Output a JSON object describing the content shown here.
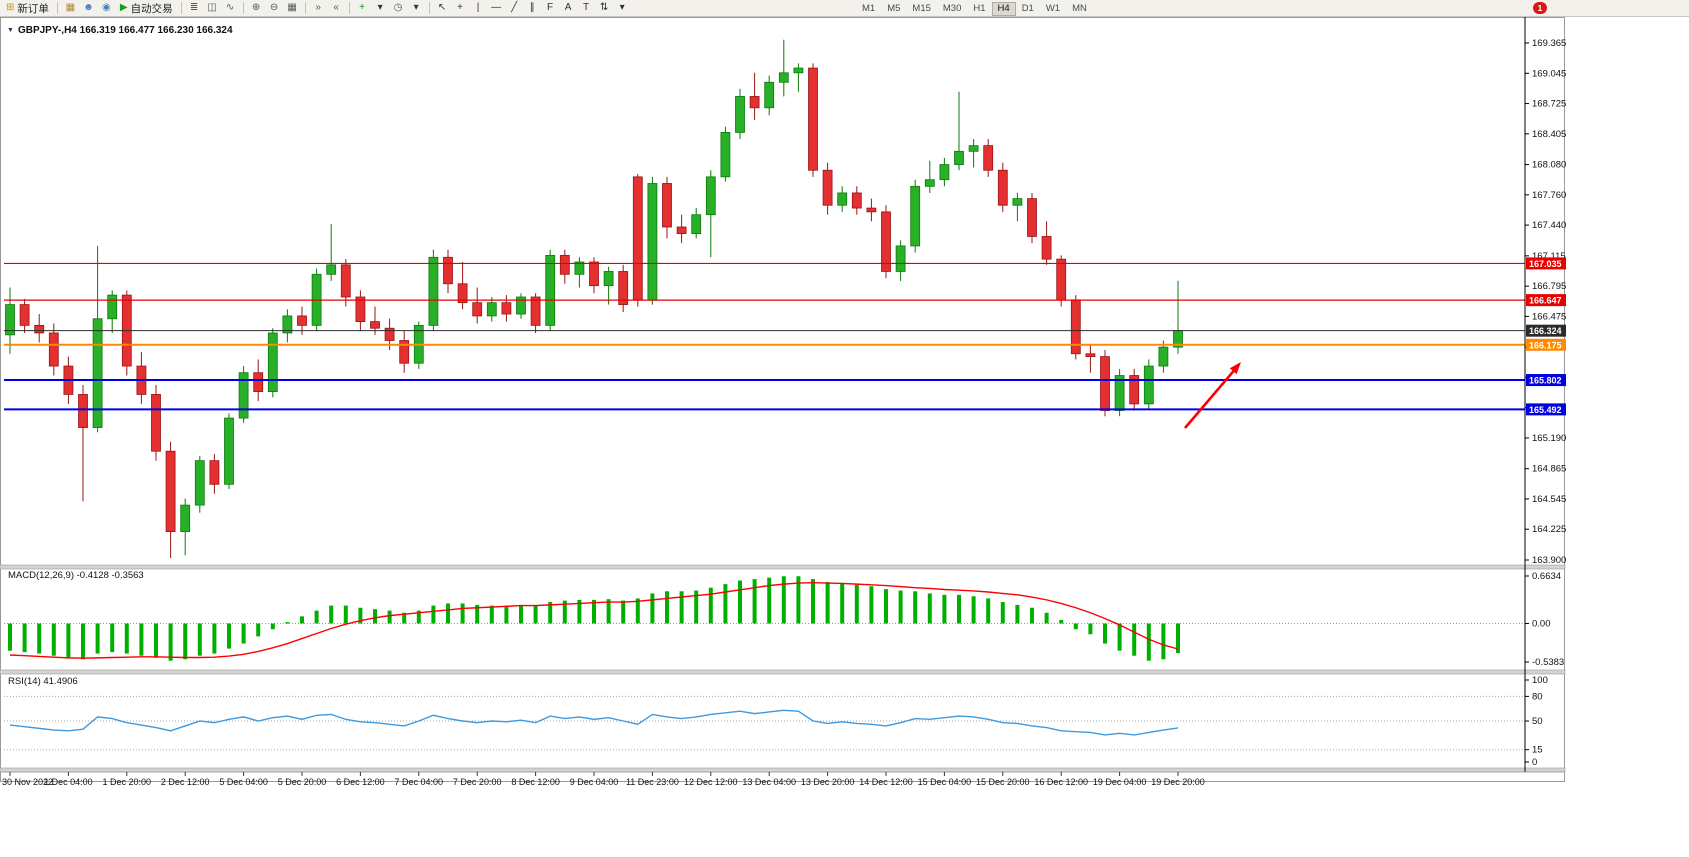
{
  "toolbar": {
    "new_order_label": "新订单",
    "auto_trading_label": "自动交易",
    "badge_count": "1",
    "timeframes": [
      "M1",
      "M5",
      "M15",
      "M30",
      "H1",
      "H4",
      "D1",
      "W1",
      "MN"
    ],
    "active_timeframe": "H4",
    "left_items": [
      {
        "type": "button",
        "name": "new-order-button",
        "label": "新订单",
        "icon_name": "new-order-icon",
        "icon_glyph": "⊞",
        "icon_color": "#c79810"
      },
      {
        "type": "sep"
      },
      {
        "type": "icon",
        "name": "charts-grid-icon",
        "glyph": "▦",
        "color": "#b08830"
      },
      {
        "type": "icon",
        "name": "profiles-icon",
        "glyph": "☻",
        "color": "#4a7ebb"
      },
      {
        "type": "icon",
        "name": "sound-alert-icon",
        "glyph": "◉",
        "color": "#4a7ebb"
      },
      {
        "type": "button",
        "name": "auto-trading-button",
        "label": "自动交易",
        "icon_name": "auto-trading-icon",
        "icon_glyph": "▶",
        "icon_color": "#12a112"
      },
      {
        "type": "sep"
      },
      {
        "type": "icon",
        "name": "bar-chart-icon",
        "glyph": "≣",
        "color": "#555555"
      },
      {
        "type": "icon",
        "name": "candlestick-chart-icon",
        "glyph": "◫",
        "color": "#555555"
      },
      {
        "type": "icon",
        "name": "line-chart-icon",
        "glyph": "∿",
        "color": "#555555"
      },
      {
        "type": "sep"
      },
      {
        "type": "icon",
        "name": "zoom-in-icon",
        "glyph": "⊕",
        "color": "#555555"
      },
      {
        "type": "icon",
        "name": "zoom-out-icon",
        "glyph": "⊖",
        "color": "#555555"
      },
      {
        "type": "icon",
        "name": "tile-windows-icon",
        "glyph": "▦",
        "color": "#555555"
      },
      {
        "type": "sep"
      },
      {
        "type": "icon",
        "name": "auto-scroll-icon",
        "glyph": "»",
        "color": "#2a7a2a"
      },
      {
        "type": "icon",
        "name": "chart-shift-icon",
        "glyph": "«",
        "color": "#2a7a2a"
      },
      {
        "type": "sep"
      },
      {
        "type": "icon",
        "name": "indicators-add-icon",
        "glyph": "+",
        "color": "#0a930a"
      },
      {
        "type": "icon",
        "name": "indicators-dropdown-caret",
        "glyph": "▾",
        "color": "#333333"
      },
      {
        "type": "icon",
        "name": "periods-clock-icon",
        "glyph": "◷",
        "color": "#555555"
      },
      {
        "type": "icon",
        "name": "periods-dropdown-caret",
        "glyph": "▾",
        "color": "#333333"
      },
      {
        "type": "sep"
      },
      {
        "type": "icon",
        "name": "cursor-icon",
        "glyph": "↖",
        "color": "#333333"
      },
      {
        "type": "icon",
        "name": "crosshair-icon",
        "glyph": "+",
        "color": "#333333"
      },
      {
        "type": "icon",
        "name": "vertical-line-icon",
        "glyph": "|",
        "color": "#333333"
      },
      {
        "type": "icon",
        "name": "horizontal-line-icon",
        "glyph": "—",
        "color": "#333333"
      },
      {
        "type": "icon",
        "name": "trendline-icon",
        "glyph": "╱",
        "color": "#333333"
      },
      {
        "type": "icon",
        "name": "channel-icon",
        "glyph": "∥",
        "color": "#333333"
      },
      {
        "type": "icon",
        "name": "fibonacci-icon",
        "glyph": "F",
        "color": "#333333"
      },
      {
        "type": "icon",
        "name": "text-icon",
        "glyph": "A",
        "color": "#333333"
      },
      {
        "type": "icon",
        "name": "text-label-icon",
        "glyph": "T",
        "color": "#333333"
      },
      {
        "type": "icon",
        "name": "arrows-icon",
        "glyph": "⇅",
        "color": "#333333"
      },
      {
        "type": "icon",
        "name": "arrows-dropdown-caret",
        "glyph": "▾",
        "color": "#333333"
      }
    ]
  },
  "chart": {
    "title": "GBPJPY-,H4  166.319 166.477 166.230 166.324",
    "symbol": "GBPJPY-",
    "timeframe": "H4",
    "price_axis": [
      "169.365",
      "169.045",
      "168.725",
      "168.405",
      "168.080",
      "167.760",
      "167.440",
      "167.115",
      "166.795",
      "166.475",
      "166.150",
      "165.830",
      "165.510",
      "165.190",
      "164.865",
      "164.545",
      "164.225",
      "163.900"
    ],
    "levels": [
      {
        "label": "167.035",
        "price": 167.035,
        "color": "#e80000",
        "width": 1.2
      },
      {
        "label": "166.647",
        "price": 166.647,
        "color": "#e80000",
        "width": 1.2
      },
      {
        "label": "166.324",
        "price": 166.324,
        "color": "#2b2b2b",
        "width": 1
      },
      {
        "label": "166.175",
        "price": 166.175,
        "color": "#ff8a00",
        "width": 2
      },
      {
        "label": "165.802",
        "price": 165.802,
        "color": "#0000e0",
        "width": 2
      },
      {
        "label": "165.492",
        "price": 165.492,
        "color": "#0000e0",
        "width": 2
      }
    ],
    "time_axis": [
      "30 Nov 2022",
      "1 Dec 04:00",
      "1 Dec 20:00",
      "2 Dec 12:00",
      "5 Dec 04:00",
      "5 Dec 20:00",
      "6 Dec 12:00",
      "7 Dec 04:00",
      "7 Dec 20:00",
      "8 Dec 12:00",
      "9 Dec 04:00",
      "11 Dec 23:00",
      "12 Dec 12:00",
      "13 Dec 04:00",
      "13 Dec 20:00",
      "14 Dec 12:00",
      "15 Dec 04:00",
      "15 Dec 20:00",
      "16 Dec 12:00",
      "19 Dec 04:00",
      "19 Dec 20:00"
    ]
  },
  "macd": {
    "label": "MACD(12,26,9) -0.4128 -0.3563",
    "scale": [
      "0.6634",
      "0.00",
      "-0.5383"
    ]
  },
  "rsi": {
    "label": "RSI(14) 41.4906",
    "scale": [
      "100",
      "80",
      "50",
      "15",
      "0"
    ]
  },
  "annotations": {
    "arrow": {
      "color": "#ff0000",
      "direction": "up-right"
    }
  },
  "chart_data": [
    {
      "type": "candlestick",
      "title": "GBPJPY- H4",
      "ohlc_display": [
        166.319,
        166.477,
        166.23,
        166.324
      ],
      "ylim": [
        163.75,
        169.6
      ],
      "up_color": "#28b028",
      "down_color": "#e43030",
      "x_labels": [
        "30 Nov 2022",
        "1 Dec 04:00",
        "1 Dec 20:00",
        "2 Dec 12:00",
        "5 Dec 04:00",
        "5 Dec 20:00",
        "6 Dec 12:00",
        "7 Dec 04:00",
        "7 Dec 20:00",
        "8 Dec 12:00",
        "9 Dec 04:00",
        "11 Dec 23:00",
        "12 Dec 12:00",
        "13 Dec 04:00",
        "13 Dec 20:00",
        "14 Dec 12:00",
        "15 Dec 04:00",
        "15 Dec 20:00",
        "16 Dec 12:00",
        "19 Dec 04:00",
        "19 Dec 20:00"
      ],
      "x_label_every": 4,
      "ohlc": [
        [
          166.28,
          166.78,
          166.08,
          166.6
        ],
        [
          166.6,
          166.66,
          166.3,
          166.38
        ],
        [
          166.38,
          166.5,
          166.2,
          166.3
        ],
        [
          166.3,
          166.4,
          165.85,
          165.95
        ],
        [
          165.95,
          166.05,
          165.55,
          165.65
        ],
        [
          165.65,
          165.75,
          164.52,
          165.3
        ],
        [
          165.3,
          167.22,
          165.25,
          166.45
        ],
        [
          166.45,
          166.75,
          166.3,
          166.7
        ],
        [
          166.7,
          166.75,
          165.85,
          165.95
        ],
        [
          165.95,
          166.1,
          165.55,
          165.65
        ],
        [
          165.65,
          165.75,
          164.95,
          165.05
        ],
        [
          165.05,
          165.15,
          163.92,
          164.2
        ],
        [
          164.2,
          164.55,
          163.95,
          164.48
        ],
        [
          164.48,
          165.0,
          164.4,
          164.95
        ],
        [
          164.95,
          165.02,
          164.6,
          164.7
        ],
        [
          164.7,
          165.45,
          164.65,
          165.4
        ],
        [
          165.4,
          165.95,
          165.35,
          165.88
        ],
        [
          165.88,
          166.02,
          165.58,
          165.68
        ],
        [
          165.68,
          166.35,
          165.62,
          166.3
        ],
        [
          166.3,
          166.55,
          166.2,
          166.48
        ],
        [
          166.48,
          166.58,
          166.28,
          166.38
        ],
        [
          166.38,
          166.98,
          166.32,
          166.92
        ],
        [
          166.92,
          167.45,
          166.85,
          167.02
        ],
        [
          167.02,
          167.08,
          166.58,
          166.68
        ],
        [
          166.68,
          166.75,
          166.32,
          166.42
        ],
        [
          166.42,
          166.58,
          166.28,
          166.35
        ],
        [
          166.35,
          166.45,
          166.12,
          166.22
        ],
        [
          166.22,
          166.32,
          165.88,
          165.98
        ],
        [
          165.98,
          166.42,
          165.92,
          166.38
        ],
        [
          166.38,
          167.18,
          166.32,
          167.1
        ],
        [
          167.1,
          167.18,
          166.72,
          166.82
        ],
        [
          166.82,
          167.05,
          166.55,
          166.62
        ],
        [
          166.62,
          166.78,
          166.4,
          166.48
        ],
        [
          166.48,
          166.68,
          166.42,
          166.62
        ],
        [
          166.62,
          166.7,
          166.42,
          166.5
        ],
        [
          166.5,
          166.72,
          166.45,
          166.68
        ],
        [
          166.68,
          166.72,
          166.3,
          166.38
        ],
        [
          166.38,
          167.18,
          166.32,
          167.12
        ],
        [
          167.12,
          167.18,
          166.82,
          166.92
        ],
        [
          166.92,
          167.1,
          166.78,
          167.05
        ],
        [
          167.05,
          167.1,
          166.72,
          166.8
        ],
        [
          166.8,
          167.0,
          166.6,
          166.95
        ],
        [
          166.95,
          167.02,
          166.52,
          166.6
        ],
        [
          167.95,
          167.98,
          166.58,
          166.65
        ],
        [
          166.65,
          167.95,
          166.6,
          167.88
        ],
        [
          167.88,
          167.95,
          167.3,
          167.42
        ],
        [
          167.42,
          167.55,
          167.25,
          167.35
        ],
        [
          167.35,
          167.62,
          167.3,
          167.55
        ],
        [
          167.55,
          168.02,
          167.1,
          167.95
        ],
        [
          167.95,
          168.48,
          167.9,
          168.42
        ],
        [
          168.42,
          168.88,
          168.35,
          168.8
        ],
        [
          168.8,
          169.05,
          168.55,
          168.68
        ],
        [
          168.68,
          169.02,
          168.6,
          168.95
        ],
        [
          168.95,
          169.4,
          168.8,
          169.05
        ],
        [
          169.05,
          169.15,
          168.85,
          169.1
        ],
        [
          169.1,
          169.15,
          167.95,
          168.02
        ],
        [
          168.02,
          168.1,
          167.55,
          167.65
        ],
        [
          167.65,
          167.85,
          167.58,
          167.78
        ],
        [
          167.78,
          167.85,
          167.55,
          167.62
        ],
        [
          167.62,
          167.72,
          167.48,
          167.58
        ],
        [
          167.58,
          167.65,
          166.88,
          166.95
        ],
        [
          166.95,
          167.28,
          166.85,
          167.22
        ],
        [
          167.22,
          167.92,
          167.15,
          167.85
        ],
        [
          167.85,
          168.12,
          167.78,
          167.92
        ],
        [
          167.92,
          168.15,
          167.85,
          168.08
        ],
        [
          168.08,
          168.85,
          168.02,
          168.22
        ],
        [
          168.22,
          168.35,
          168.05,
          168.28
        ],
        [
          168.28,
          168.35,
          167.95,
          168.02
        ],
        [
          168.02,
          168.1,
          167.58,
          167.65
        ],
        [
          167.65,
          167.78,
          167.48,
          167.72
        ],
        [
          167.72,
          167.78,
          167.25,
          167.32
        ],
        [
          167.32,
          167.48,
          167.02,
          167.08
        ],
        [
          167.08,
          167.12,
          166.58,
          166.65
        ],
        [
          166.65,
          166.7,
          166.02,
          166.08
        ],
        [
          166.08,
          166.18,
          165.88,
          166.05
        ],
        [
          166.05,
          166.12,
          165.42,
          165.48
        ],
        [
          165.48,
          165.92,
          165.42,
          165.85
        ],
        [
          165.85,
          165.92,
          165.48,
          165.55
        ],
        [
          165.55,
          166.02,
          165.5,
          165.95
        ],
        [
          165.95,
          166.22,
          165.88,
          166.15
        ],
        [
          166.15,
          166.85,
          166.08,
          166.324
        ]
      ]
    },
    {
      "type": "bar",
      "title": "MACD(12,26,9)",
      "ylim": [
        -0.5383,
        0.6634
      ],
      "histogram_color": "#00b000",
      "signal_color": "#ff0000",
      "histogram": [
        -0.38,
        -0.4,
        -0.42,
        -0.45,
        -0.48,
        -0.5,
        -0.42,
        -0.4,
        -0.42,
        -0.45,
        -0.48,
        -0.52,
        -0.5,
        -0.45,
        -0.42,
        -0.35,
        -0.28,
        -0.18,
        -0.08,
        0.02,
        0.1,
        0.18,
        0.25,
        0.25,
        0.22,
        0.2,
        0.18,
        0.15,
        0.18,
        0.25,
        0.28,
        0.28,
        0.26,
        0.25,
        0.25,
        0.26,
        0.25,
        0.3,
        0.32,
        0.33,
        0.33,
        0.34,
        0.32,
        0.35,
        0.42,
        0.45,
        0.45,
        0.46,
        0.5,
        0.55,
        0.6,
        0.62,
        0.64,
        0.66,
        0.66,
        0.62,
        0.58,
        0.56,
        0.54,
        0.52,
        0.48,
        0.46,
        0.45,
        0.42,
        0.4,
        0.4,
        0.38,
        0.35,
        0.3,
        0.26,
        0.22,
        0.15,
        0.05,
        -0.08,
        -0.15,
        -0.28,
        -0.38,
        -0.45,
        -0.52,
        -0.5,
        -0.4128
      ],
      "signal": [
        -0.44,
        -0.45,
        -0.46,
        -0.47,
        -0.48,
        -0.485,
        -0.48,
        -0.475,
        -0.47,
        -0.465,
        -0.465,
        -0.47,
        -0.475,
        -0.475,
        -0.47,
        -0.455,
        -0.43,
        -0.39,
        -0.34,
        -0.28,
        -0.21,
        -0.14,
        -0.07,
        -0.01,
        0.04,
        0.08,
        0.11,
        0.13,
        0.15,
        0.17,
        0.19,
        0.21,
        0.22,
        0.23,
        0.24,
        0.25,
        0.25,
        0.26,
        0.27,
        0.28,
        0.29,
        0.3,
        0.3,
        0.31,
        0.33,
        0.35,
        0.37,
        0.39,
        0.41,
        0.44,
        0.47,
        0.5,
        0.53,
        0.55,
        0.565,
        0.57,
        0.565,
        0.56,
        0.55,
        0.54,
        0.53,
        0.515,
        0.5,
        0.49,
        0.475,
        0.465,
        0.455,
        0.44,
        0.42,
        0.4,
        0.37,
        0.33,
        0.28,
        0.22,
        0.15,
        0.07,
        -0.02,
        -0.12,
        -0.22,
        -0.3,
        -0.3563
      ],
      "levels": [
        0
      ]
    },
    {
      "type": "line",
      "title": "RSI(14)",
      "ylim": [
        0,
        100
      ],
      "line_color": "#3e9adf",
      "levels": [
        15,
        50,
        80
      ],
      "values": [
        45,
        43,
        41,
        39,
        38,
        40,
        55,
        53,
        48,
        45,
        42,
        38,
        44,
        50,
        48,
        52,
        55,
        50,
        54,
        56,
        52,
        57,
        58,
        52,
        49,
        48,
        46,
        44,
        50,
        57,
        53,
        50,
        48,
        50,
        49,
        51,
        48,
        56,
        53,
        55,
        52,
        54,
        50,
        46,
        58,
        55,
        53,
        55,
        58,
        60,
        62,
        59,
        61,
        63,
        62,
        50,
        47,
        49,
        47,
        46,
        44,
        48,
        53,
        52,
        54,
        56,
        55,
        52,
        48,
        47,
        44,
        42,
        38,
        37,
        36,
        33,
        35,
        33,
        36,
        39,
        41.4906
      ]
    }
  ]
}
